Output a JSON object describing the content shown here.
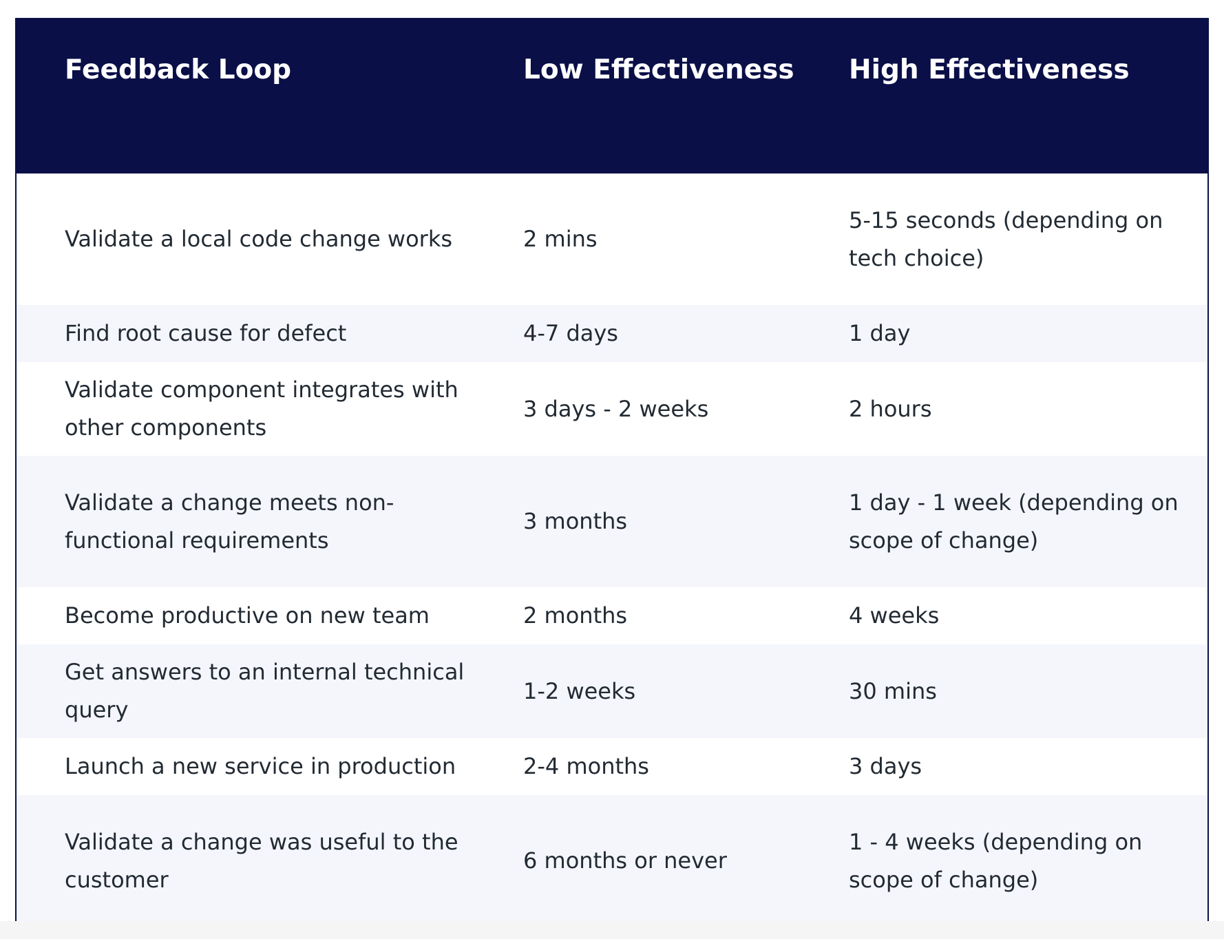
{
  "table": {
    "headers": [
      "Feedback Loop",
      "Low Effectiveness",
      "High Effectiveness"
    ],
    "rows": [
      {
        "loop": "Validate a local code change works",
        "low": "2 mins",
        "high": "5-15 seconds (depending on tech choice)"
      },
      {
        "loop": "Find root cause for defect",
        "low": "4-7 days",
        "high": "1 day"
      },
      {
        "loop": "Validate component integrates with other components",
        "low": "3 days - 2 weeks",
        "high": "2 hours"
      },
      {
        "loop": "Validate a change meets non-functional requirements",
        "low": "3 months",
        "high": "1 day - 1 week (depending on scope of change)"
      },
      {
        "loop": "Become productive on new team",
        "low": "2 months",
        "high": "4 weeks"
      },
      {
        "loop": "Get answers to an internal technical query",
        "low": "1-2 weeks",
        "high": "30 mins"
      },
      {
        "loop": "Launch a new service in production",
        "low": "2-4 months",
        "high": "3 days"
      },
      {
        "loop": "Validate a change was useful to the customer",
        "low": "6 months or never",
        "high": "1 - 4 weeks (depending on scope of change)"
      }
    ]
  },
  "colors": {
    "header_background": "#0a0f47",
    "header_text": "#ffffff",
    "row_alt_background": "#f4f6fb",
    "body_text": "#222a33"
  }
}
